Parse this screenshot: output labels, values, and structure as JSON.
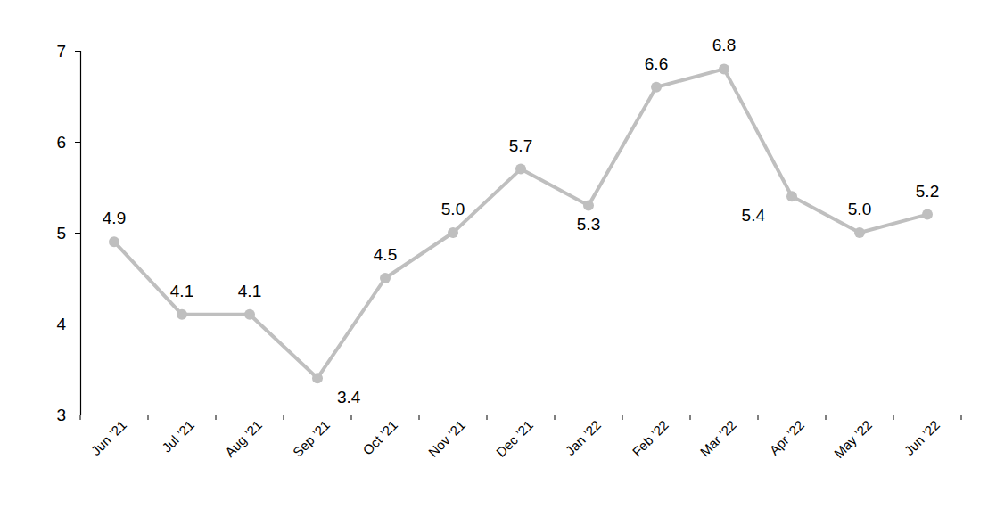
{
  "chart_data": {
    "type": "line",
    "categories": [
      "Jun ’21",
      "Jul ’21",
      "Aug ’21",
      "Sep ’21",
      "Oct ’21",
      "Nov ’21",
      "Dec ’21",
      "Jan ’22",
      "Feb ’22",
      "Mar ’22",
      "Apr ’22",
      "May ’22",
      "Jun ’22"
    ],
    "values": [
      4.9,
      4.1,
      4.1,
      3.4,
      4.5,
      5.0,
      5.7,
      5.3,
      6.6,
      6.8,
      5.4,
      5.0,
      5.2
    ],
    "value_labels": [
      "4.9",
      "4.1",
      "4.1",
      "3.4",
      "4.5",
      "5.0",
      "5.7",
      "5.3",
      "6.6",
      "6.8",
      "5.4",
      "5.0",
      "5.2"
    ],
    "color": "#bfbfbf",
    "marker": "circle",
    "ylim": [
      3,
      7
    ],
    "yticks": [
      3,
      4,
      5,
      6,
      7
    ],
    "grid": false,
    "data_labels": true
  }
}
